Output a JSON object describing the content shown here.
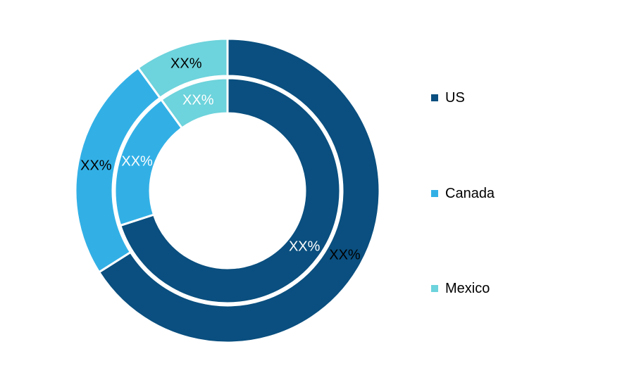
{
  "chart_data": {
    "type": "pie",
    "style": "nested-donut",
    "categories": [
      "US",
      "Canada",
      "Mexico"
    ],
    "colors": {
      "US": "#0a4f7f",
      "Canada": "#32b0e6",
      "Mexico": "#6dd3dc"
    },
    "series": [
      {
        "ring": "outer",
        "values": [
          66,
          24,
          10
        ],
        "labels": [
          "XX%",
          "XX%",
          "XX%"
        ]
      },
      {
        "ring": "inner",
        "values": [
          70,
          20,
          10
        ],
        "labels": [
          "XX%",
          "XX%",
          "XX%"
        ]
      }
    ],
    "legend": {
      "position": "right",
      "items": [
        "US",
        "Canada",
        "Mexico"
      ]
    }
  }
}
